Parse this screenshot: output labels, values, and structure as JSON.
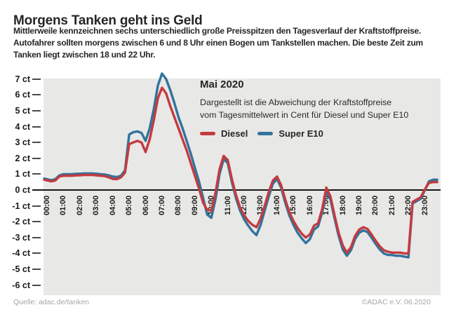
{
  "header": {
    "title": "Morgens Tanken geht ins Geld",
    "intro_lines": [
      "Mittlerweile kennzeichnen sechs unterschiedlich große Preisspitzen den Tagesverlauf der Kraftstoffpreise.",
      "Autofahrer sollten morgens zwischen 6 und 8 Uhr einen Bogen um Tankstellen machen. Die beste Zeit zum",
      "Tanken liegt zwischen 18 und 22 Uhr."
    ]
  },
  "chart_data": {
    "type": "line",
    "title": "Mai 2020",
    "subtitle_lines": [
      "Dargestellt ist die Abweichung der Kraftstoffpreise",
      "vom Tagesmittelwert in Cent für Diesel und Super E10"
    ],
    "unit": "ct",
    "xlabel": "",
    "ylabel": "",
    "ylim": [
      -6,
      7.5
    ],
    "baseline": 0,
    "grid": "none",
    "legend_position": "inside-top-right",
    "plot_bg": "#e8e8e6",
    "x_tick_labels": [
      "00:00",
      "01:00",
      "02:00",
      "03:00",
      "04:00",
      "05:00",
      "06:00",
      "07:00",
      "08:00",
      "09:00",
      "10:00",
      "11:00",
      "12:00",
      "13:00",
      "14:00",
      "15:00",
      "16:00",
      "17:00",
      "18:00",
      "19:00",
      "20:00",
      "21:00",
      "22:00",
      "23:00"
    ],
    "y_tick_values": [
      7,
      6,
      5,
      4,
      3,
      2,
      1,
      0,
      -1,
      -2,
      -3,
      -4,
      -5,
      -6
    ],
    "y_tick_suffix": " ct",
    "x_hours": [
      0,
      0.25,
      0.5,
      0.75,
      1,
      1.25,
      1.5,
      1.75,
      2,
      2.25,
      2.5,
      2.75,
      3,
      3.25,
      3.5,
      3.75,
      4,
      4.25,
      4.5,
      4.75,
      5,
      5.25,
      5.5,
      5.75,
      6,
      6.25,
      6.5,
      6.75,
      7,
      7.25,
      7.5,
      7.75,
      8,
      8.25,
      8.5,
      8.75,
      9,
      9.25,
      9.5,
      9.75,
      10,
      10.25,
      10.5,
      10.75,
      11,
      11.25,
      11.5,
      11.75,
      12,
      12.25,
      12.5,
      12.75,
      13,
      13.25,
      13.5,
      13.75,
      14,
      14.25,
      14.5,
      14.75,
      15,
      15.25,
      15.5,
      15.75,
      16,
      16.25,
      16.5,
      16.75,
      17,
      17.25,
      17.5,
      17.75,
      18,
      18.25,
      18.5,
      18.75,
      19,
      19.25,
      19.5,
      19.75,
      20,
      20.25,
      20.5,
      20.75,
      21,
      21.25,
      21.5,
      21.75,
      22,
      22.25,
      22.5,
      22.75,
      23,
      23.25,
      23.5,
      23.75
    ],
    "series": [
      {
        "name": "Diesel",
        "color": "#c43a3f",
        "values": [
          0.65,
          0.55,
          0.6,
          0.85,
          0.9,
          0.9,
          0.9,
          0.92,
          0.93,
          0.95,
          0.95,
          0.95,
          0.93,
          0.9,
          0.88,
          0.8,
          0.7,
          0.68,
          0.8,
          1.1,
          2.9,
          3.0,
          3.1,
          3.0,
          2.4,
          3.2,
          4.4,
          5.8,
          6.45,
          6.1,
          5.3,
          4.6,
          3.9,
          3.2,
          2.5,
          1.7,
          0.9,
          0.1,
          -0.8,
          -1.25,
          -1.3,
          -0.2,
          1.3,
          2.15,
          1.9,
          0.7,
          -0.3,
          -1.1,
          -1.6,
          -1.95,
          -2.2,
          -2.35,
          -1.8,
          -1.0,
          -0.1,
          0.6,
          0.85,
          0.3,
          -0.6,
          -1.4,
          -1.95,
          -2.4,
          -2.75,
          -3.0,
          -2.8,
          -2.25,
          -2.1,
          -1.2,
          0.15,
          -0.4,
          -1.6,
          -2.7,
          -3.5,
          -3.95,
          -3.6,
          -2.9,
          -2.5,
          -2.35,
          -2.45,
          -2.8,
          -3.2,
          -3.55,
          -3.8,
          -3.9,
          -3.95,
          -3.95,
          -3.95,
          -4.0,
          -4.0,
          -0.75,
          -0.6,
          -0.45,
          0.05,
          0.45,
          0.5,
          0.5
        ]
      },
      {
        "name": "Super E10",
        "color": "#31739c",
        "values": [
          0.72,
          0.62,
          0.68,
          0.92,
          1.0,
          1.0,
          1.0,
          1.02,
          1.03,
          1.05,
          1.05,
          1.05,
          1.03,
          1.0,
          0.98,
          0.92,
          0.85,
          0.82,
          0.9,
          1.25,
          3.5,
          3.65,
          3.7,
          3.6,
          3.1,
          3.9,
          5.1,
          6.6,
          7.35,
          7.0,
          6.3,
          5.5,
          4.6,
          3.9,
          3.1,
          2.3,
          1.4,
          0.55,
          -0.5,
          -1.55,
          -1.75,
          -0.6,
          1.0,
          1.95,
          1.7,
          0.5,
          -0.5,
          -1.3,
          -1.85,
          -2.25,
          -2.6,
          -2.85,
          -2.2,
          -1.3,
          -0.4,
          0.4,
          0.7,
          0.15,
          -0.8,
          -1.6,
          -2.2,
          -2.7,
          -3.05,
          -3.35,
          -3.1,
          -2.5,
          -2.3,
          -1.4,
          -0.1,
          -0.6,
          -1.8,
          -2.9,
          -3.75,
          -4.15,
          -3.8,
          -3.1,
          -2.7,
          -2.55,
          -2.65,
          -3.0,
          -3.4,
          -3.75,
          -4.0,
          -4.1,
          -4.1,
          -4.15,
          -4.15,
          -4.2,
          -4.25,
          -0.85,
          -0.7,
          -0.55,
          0.0,
          0.55,
          0.65,
          0.65
        ]
      }
    ]
  },
  "footer": {
    "source": "Quelle: adac.de/tanken",
    "copyright": "©ADAC e.V. 06.2020"
  }
}
